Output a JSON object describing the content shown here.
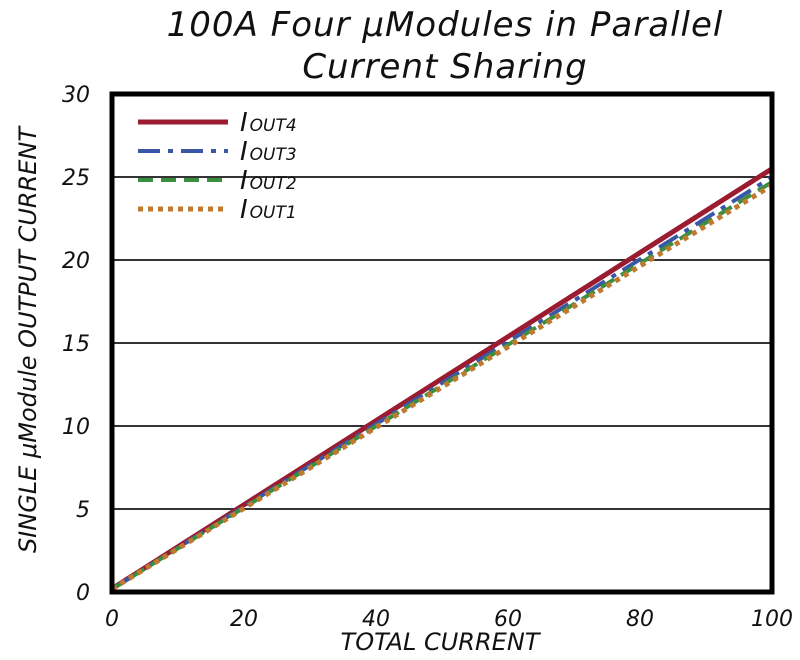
{
  "chart_data": {
    "type": "line",
    "title": "100A Four μModules in Parallel",
    "subtitle": "Current Sharing",
    "xlabel": "TOTAL CURRENT",
    "ylabel": "SINGLE μModule OUTPUT CURRENT",
    "xlim": [
      0,
      100
    ],
    "ylim": [
      0,
      30
    ],
    "xticks": [
      "0",
      "20",
      "40",
      "60",
      "80",
      "100"
    ],
    "yticks": [
      "0",
      "5",
      "10",
      "15",
      "20",
      "25",
      "30"
    ],
    "grid": "horizontal",
    "legend_position": "top-left",
    "series": [
      {
        "name": "IOUT4",
        "label_main": "I",
        "label_sub": "OUT4",
        "color": "#9b1b30",
        "dash": "solid",
        "x": [
          0,
          100
        ],
        "y": [
          0.2,
          25.5
        ]
      },
      {
        "name": "IOUT3",
        "label_main": "I",
        "label_sub": "OUT3",
        "color": "#3a56a8",
        "dash": "dashdot",
        "x": [
          0,
          100
        ],
        "y": [
          0.1,
          25.0
        ]
      },
      {
        "name": "IOUT2",
        "label_main": "I",
        "label_sub": "OUT2",
        "color": "#3a8f3f",
        "dash": "dashed",
        "x": [
          0,
          100
        ],
        "y": [
          0.0,
          24.7
        ]
      },
      {
        "name": "IOUT1",
        "label_main": "I",
        "label_sub": "OUT1",
        "color": "#c07a30",
        "dash": "dotted",
        "x": [
          0,
          100
        ],
        "y": [
          -0.5,
          24.5
        ]
      }
    ]
  }
}
